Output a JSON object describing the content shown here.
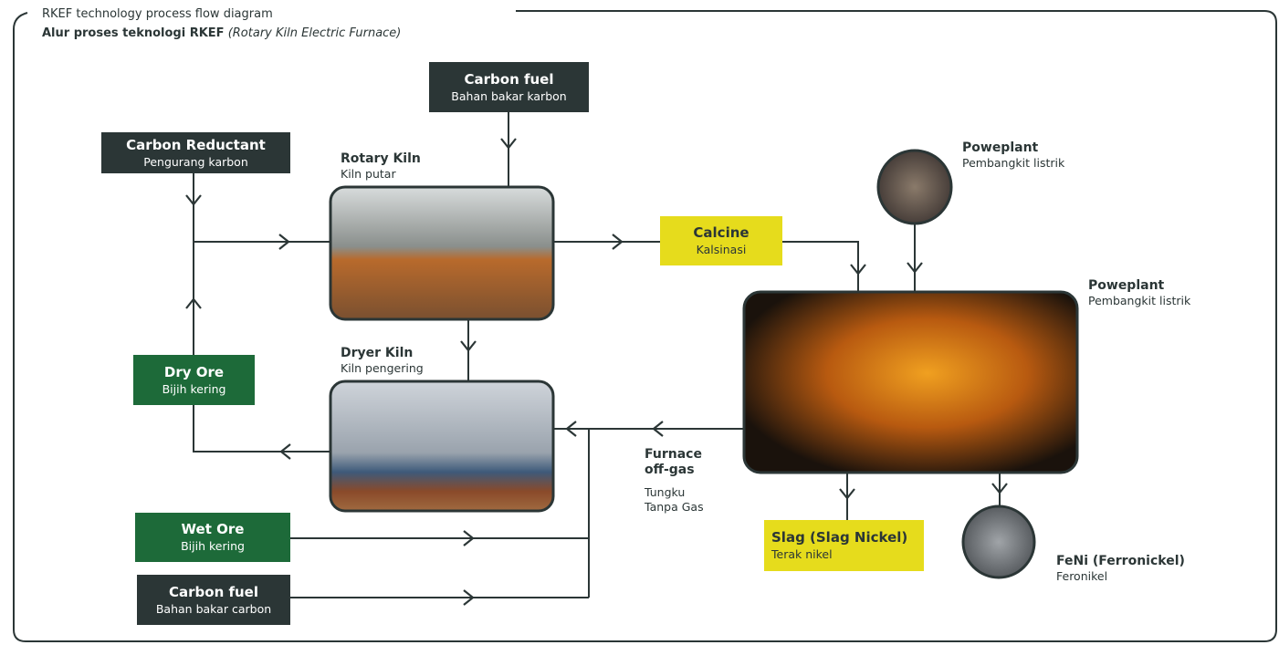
{
  "header": {
    "label": "RKEF technology process flow diagram",
    "title": "Alur proses teknologi RKEF",
    "title_italic": "(Rotary Kiln Electric Furnace)"
  },
  "nodes": [
    {
      "title": "Carbon fuel",
      "subtitle": "Bahan bakar karbon"
    },
    {
      "title": "Carbon Reductant",
      "subtitle": "Pengurang karbon"
    },
    {
      "title": "Rotary Kiln",
      "subtitle": "Kiln putar"
    },
    {
      "title": "Calcine",
      "subtitle": "Kalsinasi"
    },
    {
      "title": "Poweplant",
      "subtitle": "Pembangkit listrik"
    },
    {
      "title": "Poweplant",
      "subtitle": "Pembangkit listrik"
    },
    {
      "title": "Dry Ore",
      "subtitle": "Bijih kering"
    },
    {
      "title": "Dryer Kiln",
      "subtitle": "Kiln pengering"
    },
    {
      "title": "Furnace off-gas",
      "subtitle": "Tungku Tanpa Gas"
    },
    {
      "title": "Wet Ore",
      "subtitle": "Bijih kering"
    },
    {
      "title": "Carbon fuel",
      "subtitle": "Bahan bakar carbon"
    },
    {
      "title": "Slag (Slag Nickel)",
      "subtitle": "Terak nikel"
    },
    {
      "title": "FeNi (Ferronickel)",
      "subtitle": "Feronikel"
    }
  ]
}
